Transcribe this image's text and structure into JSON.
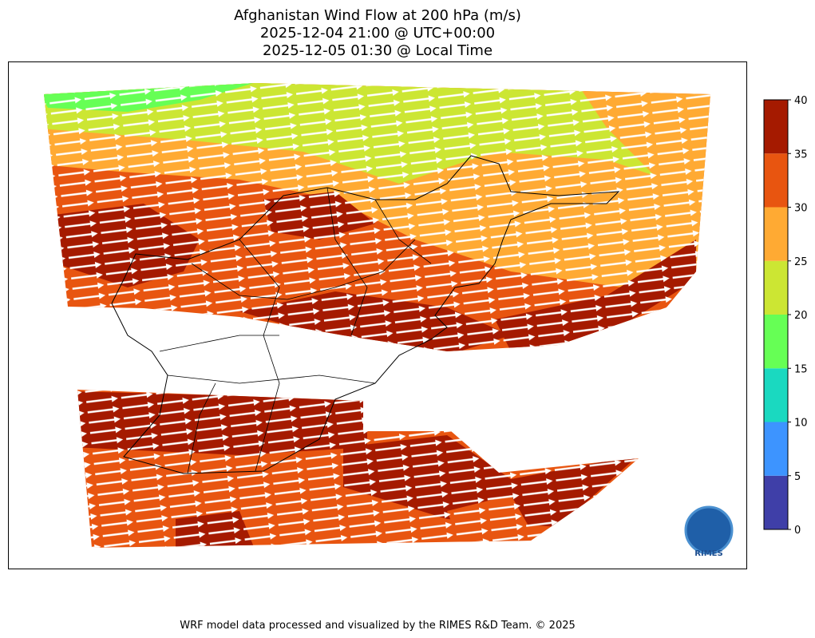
{
  "title_lines": [
    "Afghanistan Wind Flow at 200 hPa (m/s)",
    "2025-12-04 21:00 @ UTC+00:00",
    "2025-12-05 01:30 @ Local Time"
  ],
  "colorbar": {
    "ticks": [
      0,
      5,
      10,
      15,
      20,
      25,
      30,
      35,
      40
    ],
    "colors": [
      "#3f3fa8",
      "#3d94ff",
      "#1ad9c0",
      "#66ff55",
      "#cce633",
      "#ffaa33",
      "#e85510",
      "#a51a00"
    ]
  },
  "logo": "RIMES",
  "footer": "WRF model data processed and visualized by the RIMES R&D Team. © 2025"
}
